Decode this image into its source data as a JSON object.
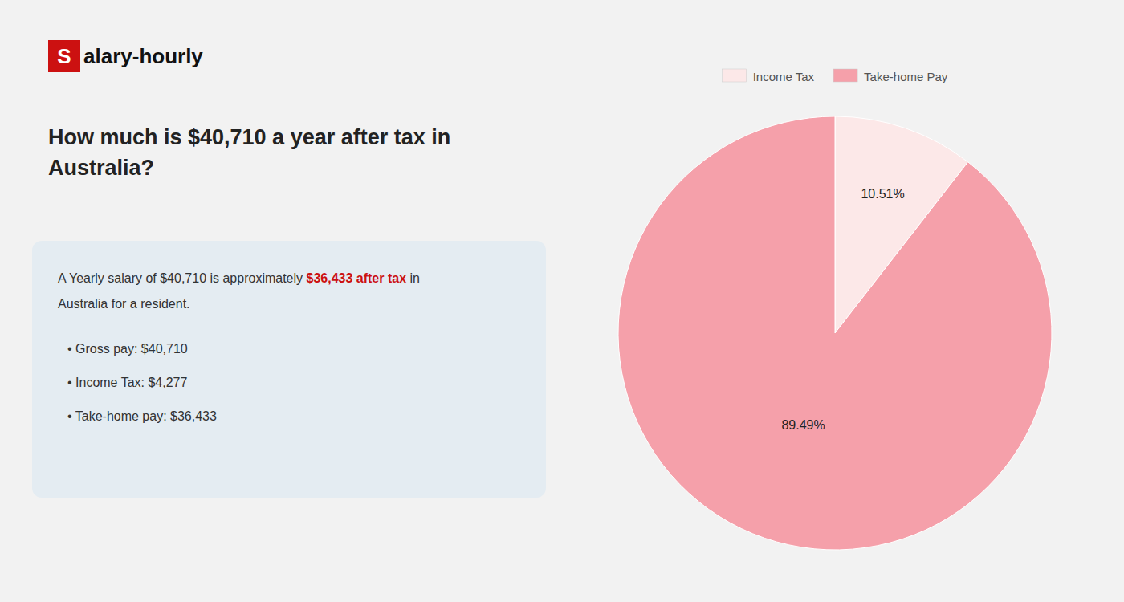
{
  "chart_data": {
    "type": "pie",
    "title": "How much is $40,710 a year after tax in\nAustralia?",
    "categories": [
      "Income Tax",
      "Take-home Pay"
    ],
    "values": [
      10.51,
      89.49
    ],
    "value_labels": [
      "10.51%",
      "89.49%"
    ],
    "colors": [
      "#fce8e8",
      "#f5a0aa"
    ],
    "data_labels": true,
    "legend": "top",
    "annotations": [
      {
        "text": "S"
      },
      {
        "text": "alary-hourly"
      },
      {
        "text": "A Yearly salary of $40,710 is approximately"
      },
      {
        "text": "$36,433 after tax",
        "color": "#cc1111"
      },
      {
        "text": "in"
      },
      {
        "text": "Australia for a resident."
      },
      {
        "text": "• Gross pay: $40,710"
      },
      {
        "text": "• Income Tax: $4,277"
      },
      {
        "text": "• Take-home pay: $36,433"
      }
    ]
  }
}
